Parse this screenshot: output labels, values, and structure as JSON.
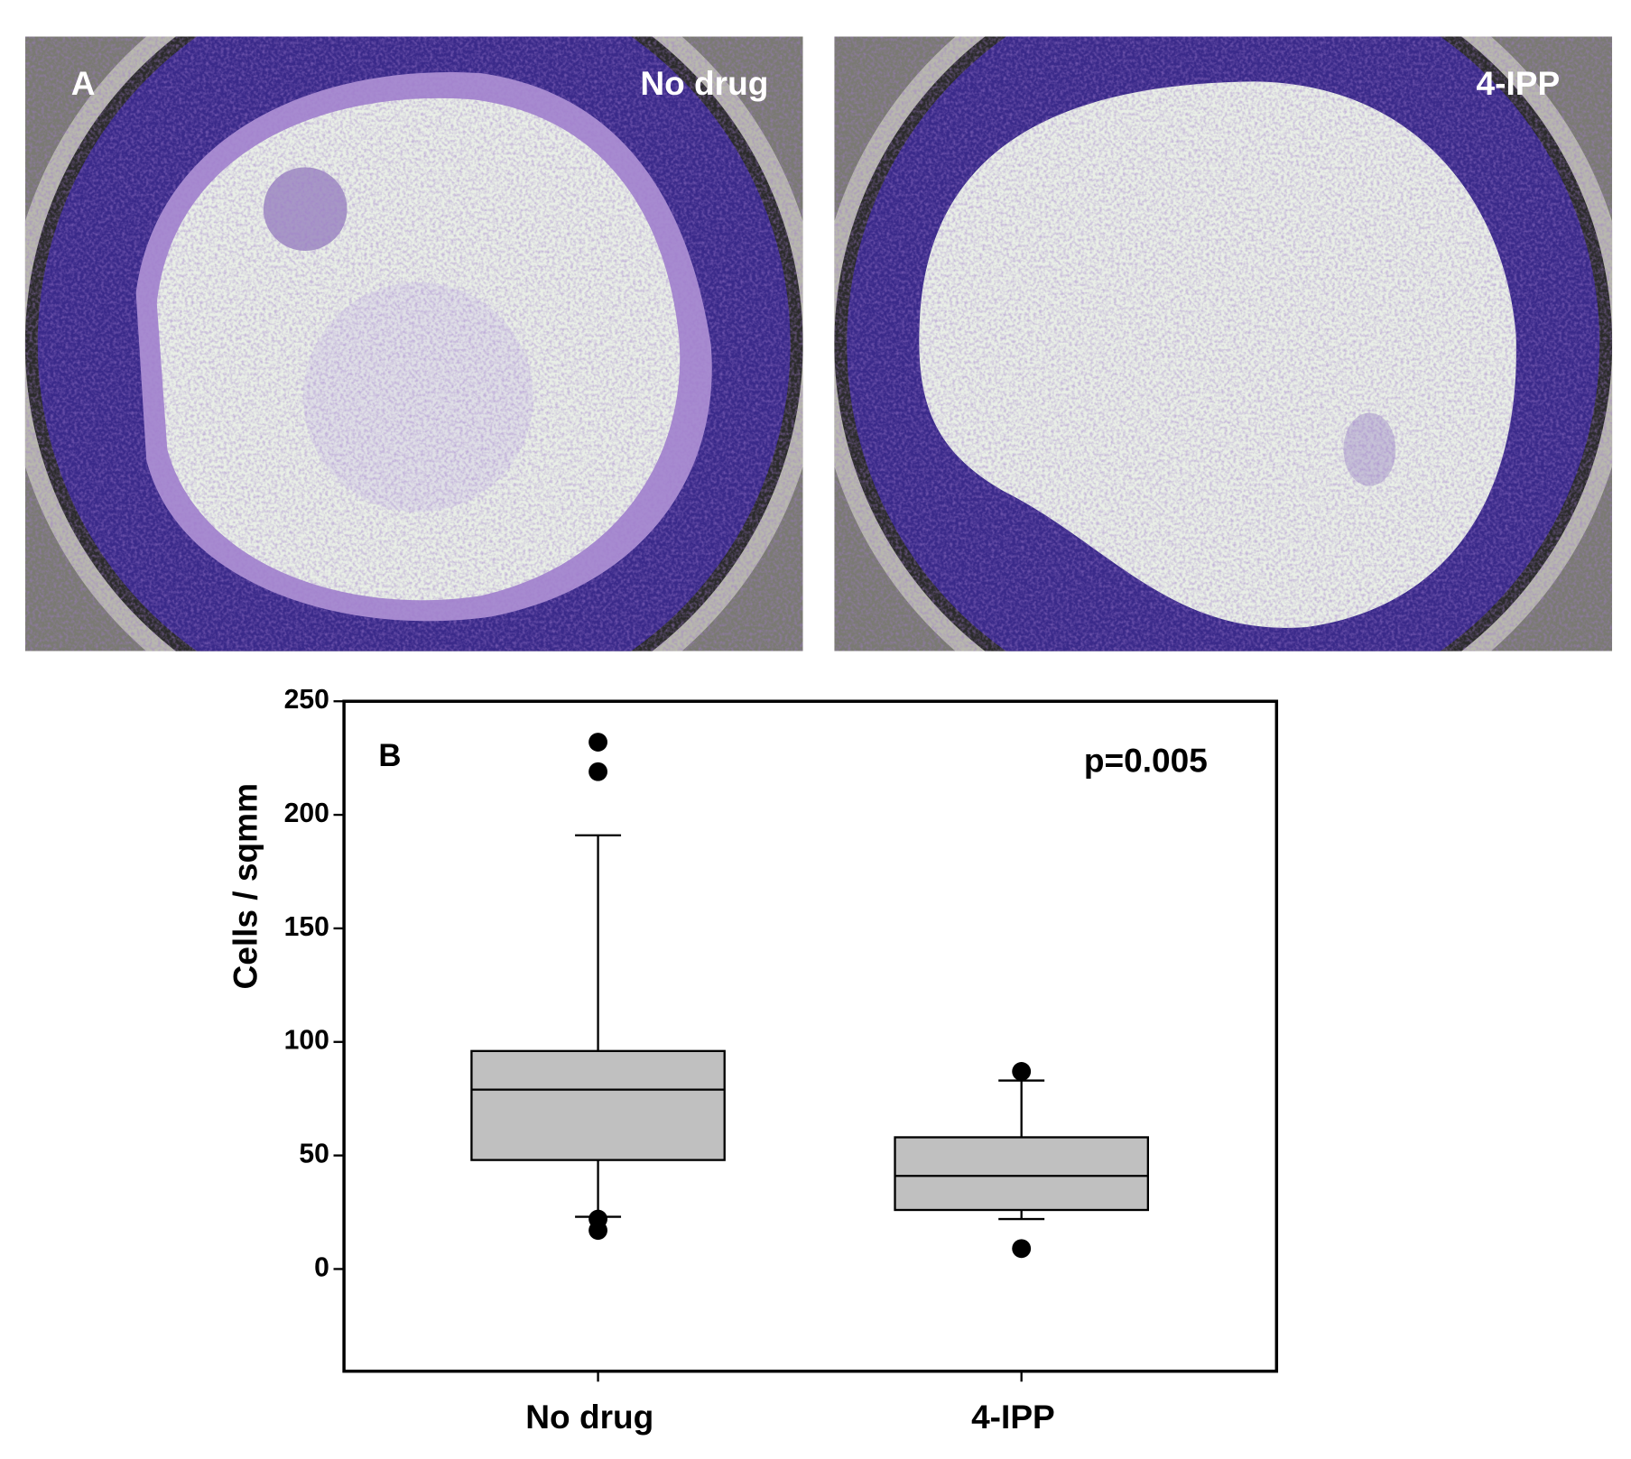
{
  "panels": [
    {
      "label": "A",
      "title": "No drug"
    },
    {
      "title": "4-IPP"
    }
  ],
  "chart_data": {
    "type": "box",
    "label": "B",
    "annotation": "p=0.005",
    "y_label": "Cells / sqmm",
    "categories": [
      "No drug",
      "4-IPP"
    ],
    "color": "#c0c0c0",
    "boxes": [
      {
        "whisker_low": 23,
        "q1": 48,
        "median": 79,
        "q3": 96,
        "whisker_high": 191,
        "outliers": [
          232,
          219,
          22,
          17
        ]
      },
      {
        "whisker_low": 22,
        "q1": 26,
        "median": 41,
        "q3": 58,
        "whisker_high": 83,
        "outliers": [
          87,
          9
        ]
      }
    ],
    "ylim": [
      -45,
      250
    ],
    "yticks": [
      0,
      50,
      100,
      150,
      200,
      250
    ]
  }
}
